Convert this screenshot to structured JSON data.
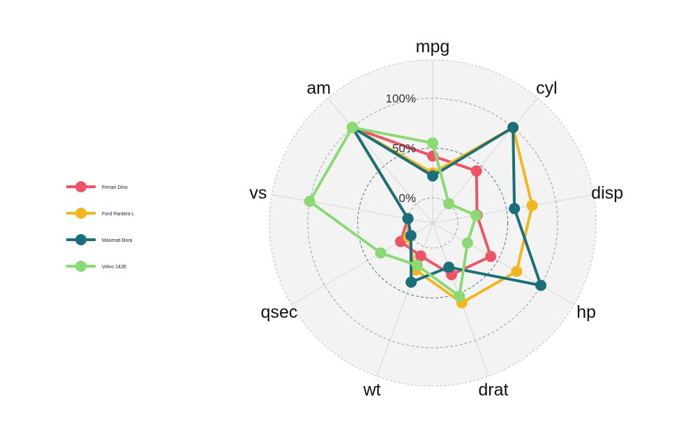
{
  "chart_data": {
    "type": "radar",
    "title": "",
    "axes": [
      "mpg",
      "cyl",
      "disp",
      "hp",
      "drat",
      "wt",
      "qsec",
      "vs",
      "am"
    ],
    "ticks": [
      {
        "value": 0,
        "label": "0%"
      },
      {
        "value": 50,
        "label": "50%"
      },
      {
        "value": 100,
        "label": "100%"
      }
    ],
    "range": [
      0,
      100
    ],
    "grid": true,
    "legend_position": "left",
    "series": [
      {
        "name": "Ferrari Dino",
        "color": "#ef5366",
        "values": [
          42,
          43,
          20,
          42,
          30,
          10,
          12,
          0,
          100
        ]
      },
      {
        "name": "Ford Pantera L",
        "color": "#f2b71f",
        "values": [
          25,
          100,
          76,
          72,
          60,
          25,
          3,
          0,
          100
        ]
      },
      {
        "name": "Maserati Bora",
        "color": "#1a6f7b",
        "values": [
          22,
          100,
          58,
          100,
          22,
          38,
          0,
          0,
          100
        ]
      },
      {
        "name": "Volvo 142E",
        "color": "#8ad973",
        "values": [
          55,
          0,
          19,
          15,
          53,
          20,
          35,
          100,
          100
        ]
      }
    ]
  }
}
